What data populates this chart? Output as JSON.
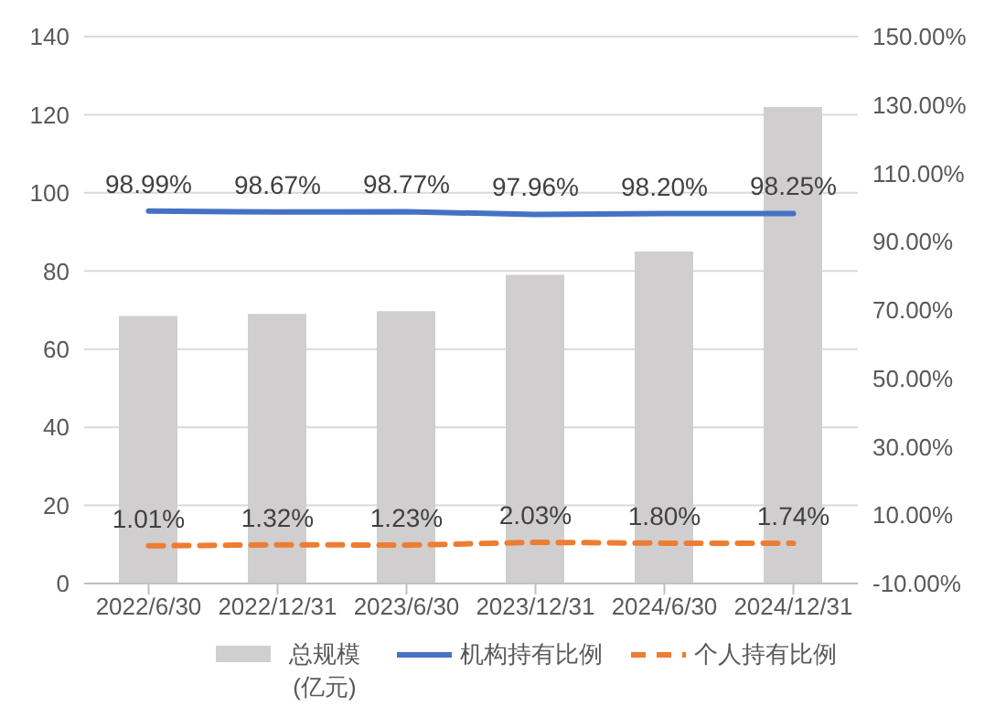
{
  "chart_data": {
    "type": "bar",
    "categories": [
      "2022/6/30",
      "2022/12/31",
      "2023/6/30",
      "2023/12/31",
      "2024/6/30",
      "2024/12/31"
    ],
    "series": [
      {
        "name": "总规模 (亿元)",
        "color": "#d0cece",
        "values": [
          68.5,
          69,
          69.7,
          79,
          85,
          122
        ]
      },
      {
        "name": "机构持有比例",
        "type": "line",
        "axis": "y2",
        "color": "#4472c4",
        "line_style": "solid",
        "values": [
          98.99,
          98.67,
          98.77,
          97.96,
          98.2,
          98.25
        ],
        "value_labels": [
          "98.99%",
          "98.67%",
          "98.77%",
          "97.96%",
          "98.20%",
          "98.25%"
        ]
      },
      {
        "name": "个人持有比例",
        "type": "line",
        "axis": "y2",
        "color": "#ed7d31",
        "line_style": "dashed",
        "values": [
          1.01,
          1.32,
          1.23,
          2.03,
          1.8,
          1.74
        ],
        "value_labels": [
          "1.01%",
          "1.32%",
          "1.23%",
          "2.03%",
          "1.80%",
          "1.74%"
        ]
      }
    ],
    "ylim": [
      0,
      140
    ],
    "yticks": [
      0,
      20,
      40,
      60,
      80,
      100,
      120,
      140
    ],
    "y2lim": [
      -10,
      150
    ],
    "y2ticks": [
      {
        "value": -10,
        "label": "-10.00%"
      },
      {
        "value": 10,
        "label": "10.00%"
      },
      {
        "value": 30,
        "label": "30.00%"
      },
      {
        "value": 50,
        "label": "50.00%"
      },
      {
        "value": 70,
        "label": "70.00%"
      },
      {
        "value": 90,
        "label": "90.00%"
      },
      {
        "value": 110,
        "label": "110.00%"
      },
      {
        "value": 130,
        "label": "130.00%"
      },
      {
        "value": 150,
        "label": "150.00%"
      }
    ],
    "grid": "y",
    "legend": "bottom",
    "marker": "none"
  }
}
